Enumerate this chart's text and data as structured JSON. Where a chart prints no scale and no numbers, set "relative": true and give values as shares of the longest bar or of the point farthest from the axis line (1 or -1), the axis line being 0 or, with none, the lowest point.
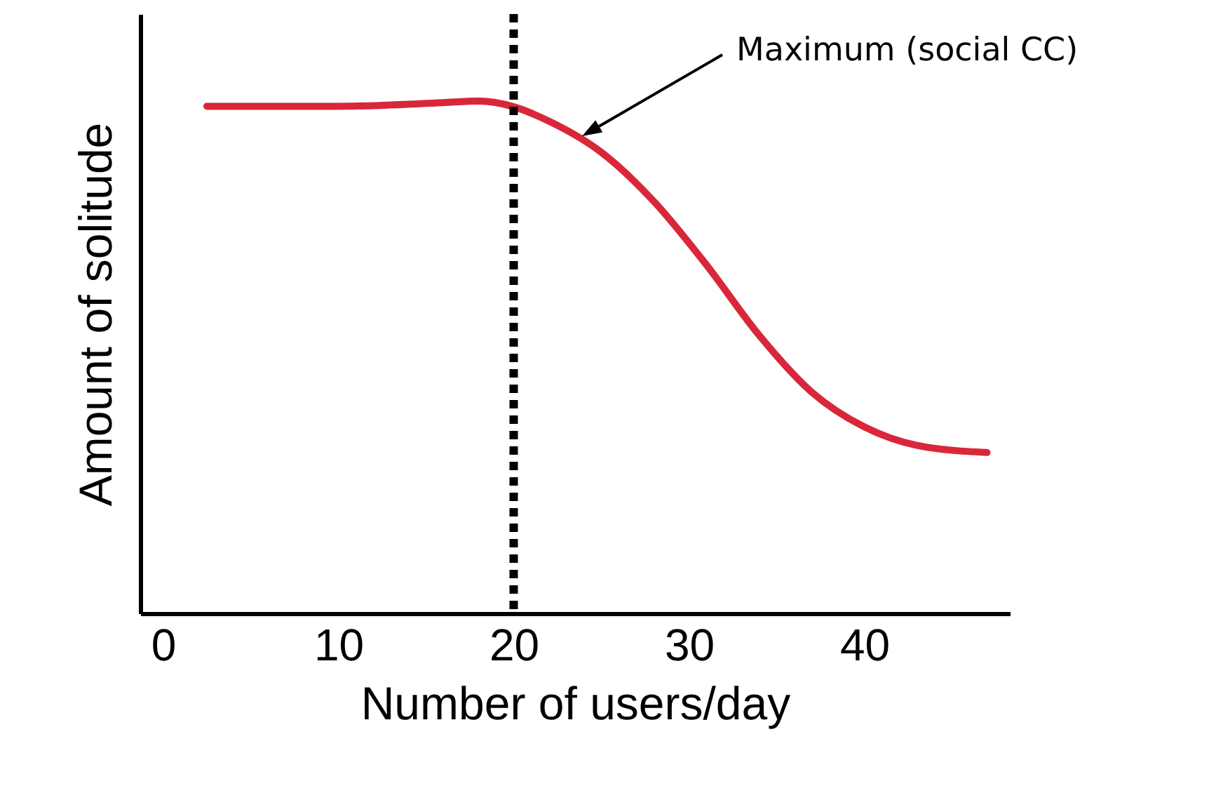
{
  "chart_data": {
    "type": "line",
    "xlabel": "Number of users/day",
    "ylabel": "Amount of solitude",
    "relative": true,
    "x": [
      2.5,
      10,
      16,
      18,
      20,
      22,
      25,
      28,
      31,
      34,
      37,
      40,
      43,
      47
    ],
    "series": [
      {
        "color": "#d9273a",
        "values": [
          0.99,
          0.99,
          0.997,
          1,
          0.989,
          0.961,
          0.9,
          0.804,
          0.68,
          0.543,
          0.432,
          0.364,
          0.328,
          0.314
        ]
      }
    ],
    "xlim": [
      -1.3,
      48.3
    ],
    "xticks": [
      0,
      10,
      20,
      30,
      40
    ],
    "grid": false,
    "marker": "none",
    "line_style": "solid",
    "ref_lines": [
      {
        "axis": "x",
        "value": 20,
        "color": "#000000",
        "line_style": "dotted"
      }
    ],
    "annotations": [
      "Maximum (social CC)"
    ]
  }
}
